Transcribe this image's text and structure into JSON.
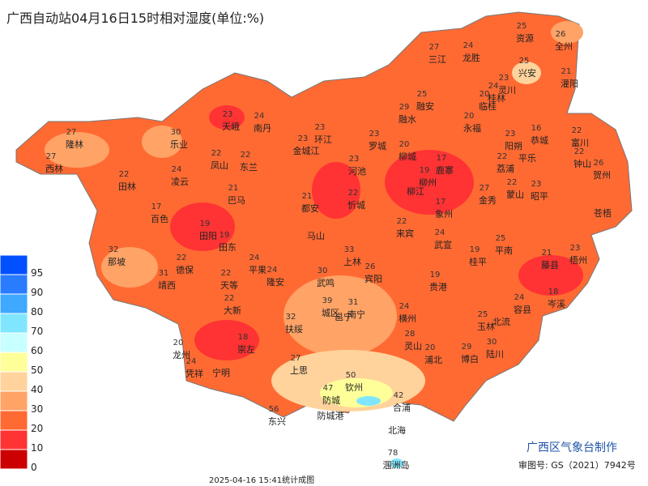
{
  "title": "广西自动站04月16日15时相对湿度(单位:%)",
  "footer": {
    "timestamp": "2025-04-16 15:41统计成图",
    "credit": "广西区气象台制作",
    "approval": "审图号: GS（2021）7942号"
  },
  "legend": {
    "levels": [
      {
        "value": 95,
        "color": "#0050ff"
      },
      {
        "value": 90,
        "color": "#2a7cff"
      },
      {
        "value": 80,
        "color": "#3fa8ff"
      },
      {
        "value": 70,
        "color": "#80e6ff"
      },
      {
        "value": 60,
        "color": "#c8ffff"
      },
      {
        "value": 50,
        "color": "#ffff99"
      },
      {
        "value": 40,
        "color": "#ffd39b"
      },
      {
        "value": 30,
        "color": "#ffa366"
      },
      {
        "value": 20,
        "color": "#ff6a33"
      },
      {
        "value": 10,
        "color": "#ff3333"
      },
      {
        "value": 0,
        "color": "#cc0000"
      }
    ]
  },
  "stations": [
    {
      "name": "隆林",
      "value": 27
    },
    {
      "name": "西林",
      "value": 27
    },
    {
      "name": "乐业",
      "value": 30
    },
    {
      "name": "天峨",
      "value": 23
    },
    {
      "name": "南丹",
      "value": 24
    },
    {
      "name": "凤山",
      "value": 22
    },
    {
      "name": "东兰",
      "value": 22
    },
    {
      "name": "环江",
      "value": 23
    },
    {
      "name": "金城江",
      "value": 23
    },
    {
      "name": "罗城",
      "value": 23
    },
    {
      "name": "融水",
      "value": 29
    },
    {
      "name": "融安",
      "value": 25
    },
    {
      "name": "三江",
      "value": 27
    },
    {
      "name": "龙胜",
      "value": 24
    },
    {
      "name": "资源",
      "value": 25
    },
    {
      "name": "全州",
      "value": 26
    },
    {
      "name": "兴安",
      "value": 25
    },
    {
      "name": "灌阳",
      "value": 21
    },
    {
      "name": "灵川",
      "value": 23
    },
    {
      "name": "桂林",
      "value": 24
    },
    {
      "name": "临桂",
      "value": 20
    },
    {
      "name": "永福",
      "value": 20
    },
    {
      "name": "阳朔",
      "value": 23
    },
    {
      "name": "恭城",
      "value": 16
    },
    {
      "name": "富川",
      "value": 22
    },
    {
      "name": "钟山",
      "value": 22
    },
    {
      "name": "贺州",
      "value": 26
    },
    {
      "name": "平乐"
    },
    {
      "name": "荔浦",
      "value": 22
    },
    {
      "name": "柳城",
      "value": 20
    },
    {
      "name": "鹿寨",
      "value": 17
    },
    {
      "name": "柳州",
      "value": 19
    },
    {
      "name": "柳江"
    },
    {
      "name": "河池",
      "value": 23
    },
    {
      "name": "凌云",
      "value": 24
    },
    {
      "name": "田林",
      "value": 22
    },
    {
      "name": "巴马",
      "value": 21
    },
    {
      "name": "都安",
      "value": 21
    },
    {
      "name": "忻城",
      "value": 22
    },
    {
      "name": "金秀",
      "value": 27
    },
    {
      "name": "蒙山",
      "value": 22
    },
    {
      "name": "昭平",
      "value": 23
    },
    {
      "name": "象州",
      "value": 17
    },
    {
      "name": "苍梧"
    },
    {
      "name": "百色",
      "value": 17
    },
    {
      "name": "田阳",
      "value": 19
    },
    {
      "name": "田东",
      "value": 19
    },
    {
      "name": "马山"
    },
    {
      "name": "来宾",
      "value": 22
    },
    {
      "name": "武宣",
      "value": 24
    },
    {
      "name": "平南",
      "value": 25
    },
    {
      "name": "藤县",
      "value": 21
    },
    {
      "name": "梧州",
      "value": 23
    },
    {
      "name": "那坡",
      "value": 32
    },
    {
      "name": "德保",
      "value": 22
    },
    {
      "name": "平果",
      "value": 24
    },
    {
      "name": "上林",
      "value": 33
    },
    {
      "name": "桂平",
      "value": 19
    },
    {
      "name": "靖西",
      "value": 31
    },
    {
      "name": "天等",
      "value": 22
    },
    {
      "name": "隆安",
      "value": 24
    },
    {
      "name": "武鸣",
      "value": 30
    },
    {
      "name": "宾阳",
      "value": 26
    },
    {
      "name": "贵港",
      "value": 19
    },
    {
      "name": "岑溪",
      "value": 18
    },
    {
      "name": "大新",
      "value": 22
    },
    {
      "name": "城区",
      "value": 39
    },
    {
      "name": "南宁",
      "value": 31
    },
    {
      "name": "邕宁"
    },
    {
      "name": "横州",
      "value": 24
    },
    {
      "name": "容县",
      "value": 24
    },
    {
      "name": "扶绥",
      "value": 32
    },
    {
      "name": "玉林",
      "value": 25
    },
    {
      "name": "北流"
    },
    {
      "name": "灵山",
      "value": 28
    },
    {
      "name": "浦北",
      "value": 20
    },
    {
      "name": "博白",
      "value": 29
    },
    {
      "name": "陆川",
      "value": 30
    },
    {
      "name": "龙州",
      "value": 20
    },
    {
      "name": "崇左",
      "value": 18
    },
    {
      "name": "凭祥",
      "value": 24
    },
    {
      "name": "宁明"
    },
    {
      "name": "上思",
      "value": 27
    },
    {
      "name": "钦州",
      "value": 50
    },
    {
      "name": "防城",
      "value": 47
    },
    {
      "name": "合浦",
      "value": 42
    },
    {
      "name": "东兴",
      "value": 56
    },
    {
      "name": "防城港"
    },
    {
      "name": "北海"
    },
    {
      "name": "涠洲岛",
      "value": 78
    }
  ]
}
